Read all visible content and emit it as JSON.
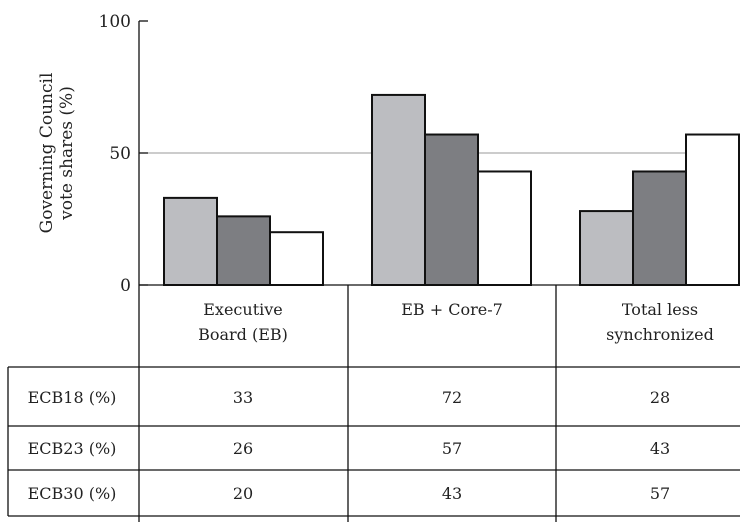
{
  "chart_data": {
    "type": "bar",
    "ylabel_lines": [
      "Governing Council",
      "vote shares (%)"
    ],
    "ylim": [
      0,
      100
    ],
    "yticks": [
      0,
      50,
      100
    ],
    "gridlines": [
      50
    ],
    "categories": [
      [
        "Executive",
        "Board (EB)"
      ],
      [
        "EB + Core-7"
      ],
      [
        "Total less",
        "synchronized"
      ]
    ],
    "series": [
      {
        "name": "ECB18 (%)",
        "color": "#bcbdc1",
        "values": [
          33,
          72,
          28
        ]
      },
      {
        "name": "ECB23 (%)",
        "color": "#7d7e82",
        "values": [
          26,
          57,
          43
        ]
      },
      {
        "name": "ECB30 (%)",
        "color": "#ffffff",
        "values": [
          20,
          43,
          57
        ]
      }
    ]
  }
}
